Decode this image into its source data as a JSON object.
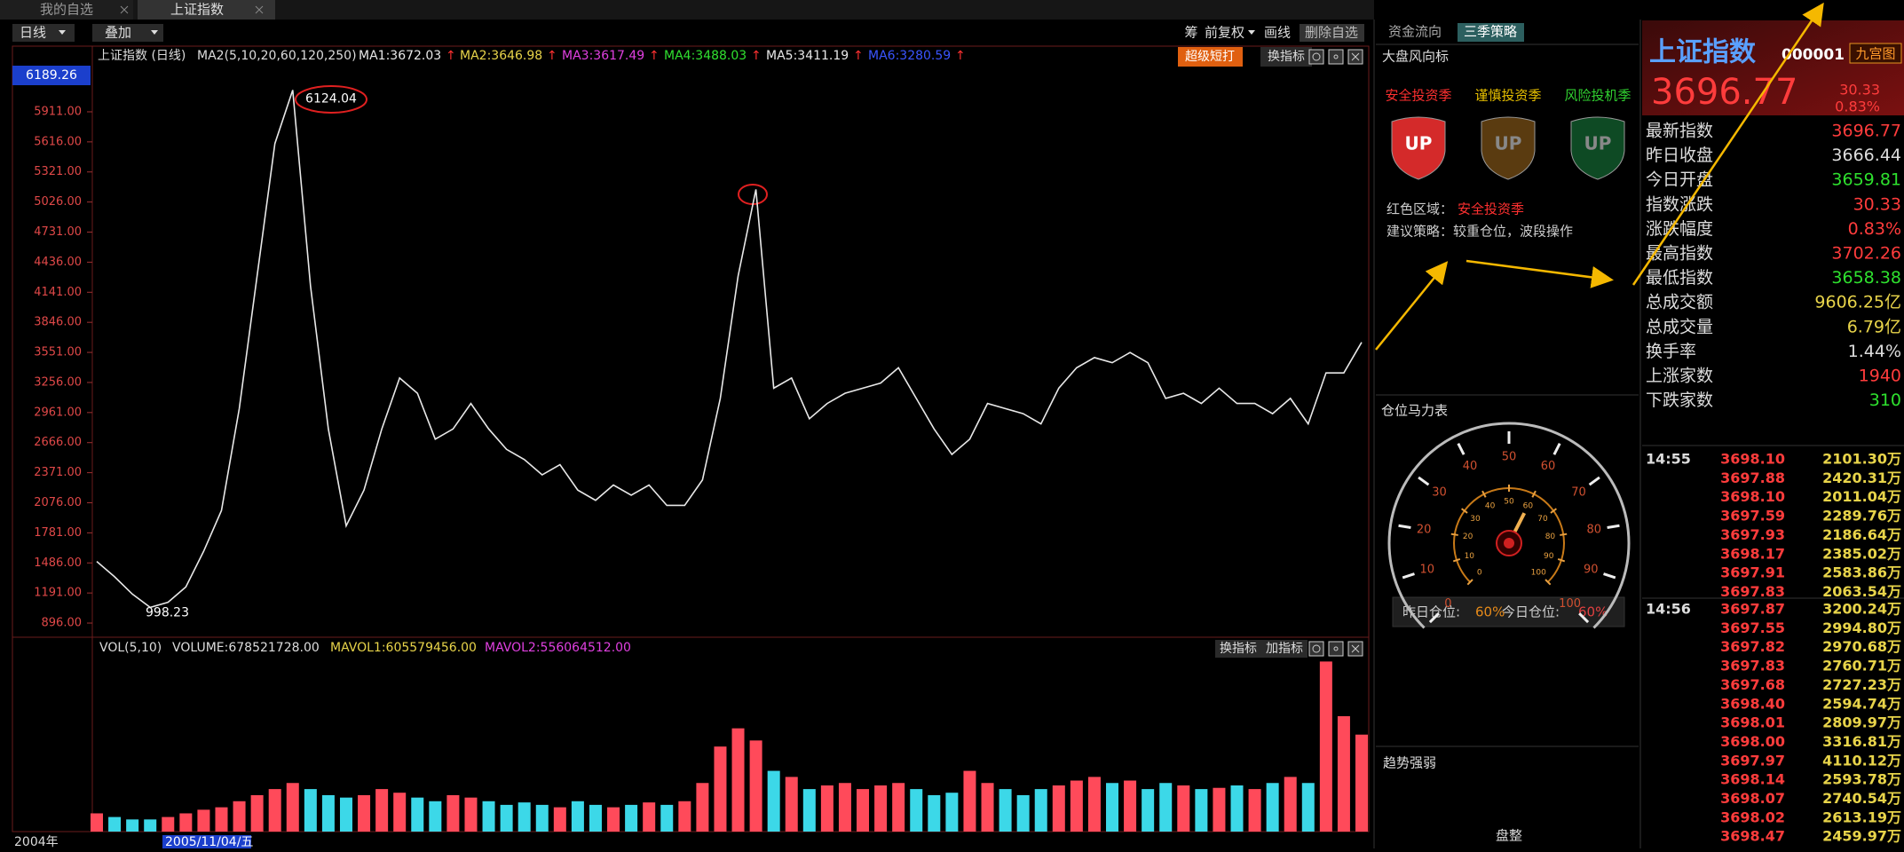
{
  "tabs": [
    "我的自选",
    "上证指数"
  ],
  "toolbar": {
    "left": [
      "日线",
      "叠加"
    ],
    "right": [
      "筹",
      "前复权",
      "画线",
      "删除自选"
    ]
  },
  "chart_data": [
    {
      "type": "line",
      "title": "上证指数 (日线)",
      "indicator": "MA2(5,10,20,60,120,250)",
      "ma": [
        {
          "text": "MA1:3672.03",
          "color": "#e8e8e8"
        },
        {
          "text": "MA2:3646.98",
          "color": "#e8d44a"
        },
        {
          "text": "MA3:3617.49",
          "color": "#e040e0"
        },
        {
          "text": "MA4:3488.03",
          "color": "#30e030"
        },
        {
          "text": "MA5:3411.19",
          "color": "#e8e8e8"
        },
        {
          "text": "MA6:3280.59",
          "color": "#3a55ff"
        }
      ],
      "arrow": "↑",
      "price_tag": 6189.26,
      "buttons": [
        "超级短打",
        "换指标"
      ],
      "series": [
        {
          "color": "#e8e8e8",
          "values": [
            1500,
            1350,
            1180,
            1050,
            1100,
            1250,
            1600,
            2000,
            3000,
            4300,
            5600,
            6124,
            4200,
            2800,
            1850,
            2200,
            2800,
            3300,
            3150,
            2700,
            2800,
            3050,
            2800,
            2600,
            2500,
            2350,
            2450,
            2200,
            2100,
            2250,
            2150,
            2250,
            2050,
            2050,
            2300,
            3100,
            4300,
            5150,
            3200,
            3300,
            2900,
            3050,
            3150,
            3200,
            3250,
            3400,
            3100,
            2800,
            2550,
            2700,
            3050,
            3000,
            2950,
            2850,
            3200,
            3400,
            3500,
            3450,
            3550,
            3450,
            3100,
            3150,
            3050,
            3200,
            3050,
            3050,
            2950,
            3100,
            2850,
            3350,
            3350,
            3650
          ]
        }
      ],
      "ylim": [
        757,
        6555
      ],
      "yticks": [
        {
          "value": 896,
          "label": "896.00"
        },
        {
          "value": 1191,
          "label": "1191.00"
        },
        {
          "value": 1486,
          "label": "1486.00"
        },
        {
          "value": 1781,
          "label": "1781.00"
        },
        {
          "value": 2076,
          "label": "2076.00"
        },
        {
          "value": 2371,
          "label": "2371.00"
        },
        {
          "value": 2666,
          "label": "2666.00"
        },
        {
          "value": 2961,
          "label": "2961.00"
        },
        {
          "value": 3256,
          "label": "3256.00"
        },
        {
          "value": 3551,
          "label": "3551.00"
        },
        {
          "value": 3846,
          "label": "3846.00"
        },
        {
          "value": 4141,
          "label": "4141.00"
        },
        {
          "value": 4436,
          "label": "4436.00"
        },
        {
          "value": 4731,
          "label": "4731.00"
        },
        {
          "value": 5026,
          "label": "5026.00"
        },
        {
          "value": 5321,
          "label": "5321.00"
        },
        {
          "value": 5616,
          "label": "5616.00"
        },
        {
          "value": 5911,
          "label": "5911.00"
        }
      ],
      "annotations": [
        6124.04,
        998.23
      ],
      "x_labels": [
        "2004年",
        "2005/11/04/五"
      ]
    },
    {
      "type": "bar",
      "indicators": [
        {
          "text": "VOL(5,10)",
          "color": "#dddddd"
        },
        {
          "text": "VOLUME:678521728.00",
          "color": "#dddddd"
        },
        {
          "text": "MAVOL1:605579456.00",
          "color": "#e8d44a"
        },
        {
          "text": "MAVOL2:556064512.00",
          "color": "#e040e0"
        }
      ],
      "buttons": [
        "换指标",
        "加指标"
      ],
      "colors": [
        "#ff4a5a",
        "#3cd8e8"
      ],
      "values": [
        127500000,
        102000000,
        85000000,
        85000000,
        102000000,
        127500000,
        153000000,
        170000000,
        212500000,
        255000000,
        297500000,
        340000000,
        297500000,
        255000000,
        238000000,
        255000000,
        297500000,
        272000000,
        238000000,
        212500000,
        255000000,
        238000000,
        212500000,
        187000000,
        204000000,
        187000000,
        170000000,
        212500000,
        187000000,
        170000000,
        187000000,
        204000000,
        187000000,
        212500000,
        340000000,
        595000000,
        722500000,
        637500000,
        425000000,
        382500000,
        297500000,
        323000000,
        340000000,
        297500000,
        323000000,
        340000000,
        297500000,
        255000000,
        272000000,
        425000000,
        340000000,
        297500000,
        255000000,
        297500000,
        323000000,
        357000000,
        382500000,
        340000000,
        357000000,
        297500000,
        340000000,
        323000000,
        297500000,
        306000000,
        323000000,
        297500000,
        340000000,
        382500000,
        340000000,
        1190000000,
        807500000,
        678521728
      ],
      "ylim": [
        0,
        1360000000
      ]
    }
  ],
  "strategy": {
    "tabs": [
      "资金流向",
      "三季策略"
    ],
    "title": "大盘风向标",
    "seasons": [
      {
        "label": "安全投资季",
        "color": "#ff3030",
        "shield": "#d42a2a"
      },
      {
        "label": "谨慎投资季",
        "color": "#e8c000",
        "shield": "#5a3b10"
      },
      {
        "label": "风险投机季",
        "color": "#30d030",
        "shield": "#0e4a24"
      }
    ],
    "badge": "UP",
    "zone_label": "红色区域：",
    "zone": "安全投资季",
    "advice": "建议策略：较重仓位，波段操作",
    "gauge_title": "仓位马力表",
    "gauge": {
      "ticks": [
        0,
        10,
        20,
        30,
        40,
        50,
        60,
        70,
        80,
        90,
        100
      ],
      "value": 60
    },
    "yesterday_label": "昨日仓位:",
    "yesterday": "60%",
    "today_label": "今日仓位:",
    "today": "60%",
    "trend_title": "趋势强弱",
    "trend": "盘整"
  },
  "quote": {
    "name": "上证指数",
    "code": "000001",
    "button": "九宫图",
    "price": "3696.77",
    "change": "30.33",
    "pct": "0.83%",
    "rows": [
      {
        "label": "最新指数",
        "value": "3696.77",
        "color": "#ff3c3c"
      },
      {
        "label": "昨日收盘",
        "value": "3666.44",
        "color": "#dddddd"
      },
      {
        "label": "今日开盘",
        "value": "3659.81",
        "color": "#2ee02e"
      },
      {
        "label": "指数涨跌",
        "value": "30.33",
        "color": "#ff3c3c"
      },
      {
        "label": "涨跌幅度",
        "value": "0.83%",
        "color": "#ff3c3c"
      },
      {
        "label": "最高指数",
        "value": "3702.26",
        "color": "#ff3c3c"
      },
      {
        "label": "最低指数",
        "value": "3658.38",
        "color": "#2ee02e"
      },
      {
        "label": "总成交额",
        "value": "9606.25亿",
        "color": "#e8d44a"
      },
      {
        "label": "总成交量",
        "value": "6.79亿",
        "color": "#e8d44a"
      },
      {
        "label": "换手率",
        "value": "1.44%",
        "color": "#dddddd"
      },
      {
        "label": "上涨家数",
        "value": "1940",
        "color": "#ff3c3c"
      },
      {
        "label": "下跌家数",
        "value": "310",
        "color": "#2ee02e"
      }
    ]
  },
  "trades": [
    {
      "time": "14:55",
      "rows": [
        [
          "3698.10",
          "2101.30万"
        ],
        [
          "3697.88",
          "2420.31万"
        ],
        [
          "3698.10",
          "2011.04万"
        ],
        [
          "3697.59",
          "2289.76万"
        ],
        [
          "3697.93",
          "2186.64万"
        ],
        [
          "3698.17",
          "2385.02万"
        ],
        [
          "3697.91",
          "2583.86万"
        ],
        [
          "3697.83",
          "2063.54万"
        ]
      ]
    },
    {
      "time": "14:56",
      "rows": [
        [
          "3697.87",
          "3200.24万"
        ],
        [
          "3697.55",
          "2994.80万"
        ],
        [
          "3697.82",
          "2970.68万"
        ],
        [
          "3697.83",
          "2760.71万"
        ],
        [
          "3697.68",
          "2727.23万"
        ],
        [
          "3698.40",
          "2594.74万"
        ],
        [
          "3698.01",
          "2809.97万"
        ],
        [
          "3698.00",
          "3316.81万"
        ],
        [
          "3697.97",
          "4110.12万"
        ],
        [
          "3698.14",
          "2593.78万"
        ],
        [
          "3698.07",
          "2740.54万"
        ],
        [
          "3698.02",
          "2613.19万"
        ],
        [
          "3698.47",
          "2459.97万"
        ]
      ]
    }
  ]
}
